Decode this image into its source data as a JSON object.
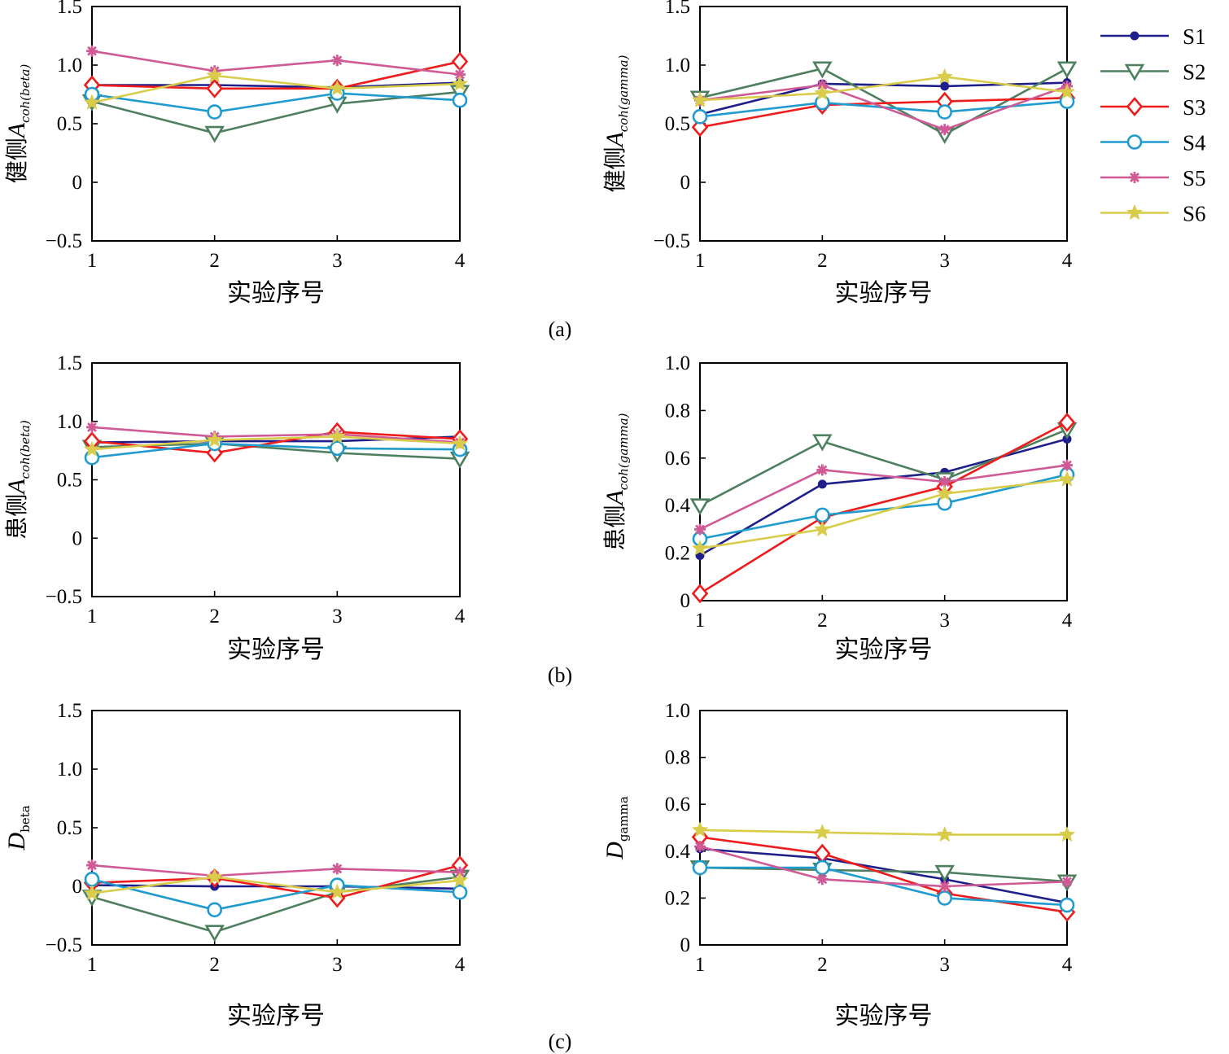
{
  "series_styles": [
    {
      "name": "S1",
      "color": "#1f1f8c",
      "marker": "dot"
    },
    {
      "name": "S2",
      "color": "#4e8060",
      "marker": "triangle-down"
    },
    {
      "name": "S3",
      "color": "#ee1c1c",
      "marker": "diamond"
    },
    {
      "name": "S4",
      "color": "#1f9bcf",
      "marker": "circle"
    },
    {
      "name": "S5",
      "color": "#d05a95",
      "marker": "asterisk"
    },
    {
      "name": "S6",
      "color": "#d8cc4a",
      "marker": "star"
    }
  ],
  "panel_labels": [
    "(a)",
    "(b)",
    "(c)"
  ],
  "chart_data": [
    {
      "type": "line",
      "panel": "(a)",
      "position": "left",
      "ylabel_pre": "健侧",
      "ylabel_main": "A",
      "ylabel_sub": "coh(beta)",
      "xlabel": "实验序号",
      "x": [
        1,
        2,
        3,
        4
      ],
      "ylim": [
        -0.5,
        1.5
      ],
      "yticks": [
        -0.5,
        0,
        0.5,
        1.0,
        1.5
      ],
      "ytick_labels": [
        "−0.5",
        "0",
        "0.5",
        "1.0",
        "1.5"
      ],
      "series": [
        {
          "name": "S1",
          "values": [
            0.83,
            0.83,
            0.81,
            0.85
          ]
        },
        {
          "name": "S2",
          "values": [
            0.69,
            0.42,
            0.67,
            0.77
          ]
        },
        {
          "name": "S3",
          "values": [
            0.83,
            0.8,
            0.8,
            1.03
          ]
        },
        {
          "name": "S4",
          "values": [
            0.75,
            0.6,
            0.76,
            0.7
          ]
        },
        {
          "name": "S5",
          "values": [
            1.12,
            0.95,
            1.04,
            0.92
          ]
        },
        {
          "name": "S6",
          "values": [
            0.68,
            0.91,
            0.8,
            0.84
          ]
        }
      ]
    },
    {
      "type": "line",
      "panel": "(a)",
      "position": "right",
      "ylabel_pre": "健侧",
      "ylabel_main": "A",
      "ylabel_sub": "coh(gamma)",
      "xlabel": "实验序号",
      "x": [
        1,
        2,
        3,
        4
      ],
      "ylim": [
        -0.5,
        1.5
      ],
      "yticks": [
        -0.5,
        0,
        0.5,
        1.0,
        1.5
      ],
      "ytick_labels": [
        "−0.5",
        "0",
        "0.5",
        "1.0",
        "1.5"
      ],
      "series": [
        {
          "name": "S1",
          "values": [
            0.58,
            0.84,
            0.82,
            0.85
          ]
        },
        {
          "name": "S2",
          "values": [
            0.72,
            0.97,
            0.41,
            0.97
          ]
        },
        {
          "name": "S3",
          "values": [
            0.47,
            0.66,
            0.69,
            0.72
          ]
        },
        {
          "name": "S4",
          "values": [
            0.56,
            0.68,
            0.6,
            0.69
          ]
        },
        {
          "name": "S5",
          "values": [
            0.7,
            0.83,
            0.45,
            0.82
          ]
        },
        {
          "name": "S6",
          "values": [
            0.7,
            0.76,
            0.9,
            0.77
          ]
        }
      ]
    },
    {
      "type": "line",
      "panel": "(b)",
      "position": "left",
      "ylabel_pre": "患侧",
      "ylabel_main": "A",
      "ylabel_sub": "coh(beta)",
      "xlabel": "实验序号",
      "x": [
        1,
        2,
        3,
        4
      ],
      "ylim": [
        -0.5,
        1.5
      ],
      "yticks": [
        -0.5,
        0,
        0.5,
        1.0,
        1.5
      ],
      "ytick_labels": [
        "−0.5",
        "0",
        "0.5",
        "1.0",
        "1.5"
      ],
      "series": [
        {
          "name": "S1",
          "values": [
            0.82,
            0.83,
            0.83,
            0.87
          ]
        },
        {
          "name": "S2",
          "values": [
            0.78,
            0.81,
            0.73,
            0.68
          ]
        },
        {
          "name": "S3",
          "values": [
            0.83,
            0.73,
            0.91,
            0.85
          ]
        },
        {
          "name": "S4",
          "values": [
            0.69,
            0.81,
            0.77,
            0.76
          ]
        },
        {
          "name": "S5",
          "values": [
            0.95,
            0.87,
            0.89,
            0.82
          ]
        },
        {
          "name": "S6",
          "values": [
            0.76,
            0.84,
            0.87,
            0.81
          ]
        }
      ]
    },
    {
      "type": "line",
      "panel": "(b)",
      "position": "right",
      "ylabel_pre": "患侧",
      "ylabel_main": "A",
      "ylabel_sub": "coh(gamma)",
      "xlabel": "实验序号",
      "x": [
        1,
        2,
        3,
        4
      ],
      "ylim": [
        0,
        1.0
      ],
      "yticks": [
        0,
        0.2,
        0.4,
        0.6,
        0.8,
        1.0
      ],
      "ytick_labels": [
        "0",
        "0.2",
        "0.4",
        "0.6",
        "0.8",
        "1.0"
      ],
      "series": [
        {
          "name": "S1",
          "values": [
            0.19,
            0.49,
            0.54,
            0.68
          ]
        },
        {
          "name": "S2",
          "values": [
            0.4,
            0.67,
            0.51,
            0.72
          ]
        },
        {
          "name": "S3",
          "values": [
            0.03,
            0.35,
            0.48,
            0.75
          ]
        },
        {
          "name": "S4",
          "values": [
            0.26,
            0.36,
            0.41,
            0.53
          ]
        },
        {
          "name": "S5",
          "values": [
            0.3,
            0.55,
            0.5,
            0.57
          ]
        },
        {
          "name": "S6",
          "values": [
            0.22,
            0.3,
            0.45,
            0.51
          ]
        }
      ]
    },
    {
      "type": "line",
      "panel": "(c)",
      "position": "left",
      "ylabel_pre": "",
      "ylabel_main": "D",
      "ylabel_sub": "beta",
      "xlabel": "实验序号",
      "x": [
        1,
        2,
        3,
        4
      ],
      "ylim": [
        -0.5,
        1.5
      ],
      "yticks": [
        -0.5,
        0,
        0.5,
        1.0,
        1.5
      ],
      "ytick_labels": [
        "−0.5",
        "0",
        "0.5",
        "1.0",
        "1.5"
      ],
      "series": [
        {
          "name": "S1",
          "values": [
            0.01,
            0.0,
            0.0,
            -0.02
          ]
        },
        {
          "name": "S2",
          "values": [
            -0.09,
            -0.39,
            -0.05,
            0.08
          ]
        },
        {
          "name": "S3",
          "values": [
            0.03,
            0.07,
            -0.1,
            0.18
          ]
        },
        {
          "name": "S4",
          "values": [
            0.06,
            -0.2,
            0.01,
            -0.05
          ]
        },
        {
          "name": "S5",
          "values": [
            0.18,
            0.09,
            0.15,
            0.12
          ]
        },
        {
          "name": "S6",
          "values": [
            -0.06,
            0.08,
            -0.05,
            0.05
          ]
        }
      ]
    },
    {
      "type": "line",
      "panel": "(c)",
      "position": "right",
      "ylabel_pre": "",
      "ylabel_main": "D",
      "ylabel_sub": "gamma",
      "xlabel": "实验序号",
      "x": [
        1,
        2,
        3,
        4
      ],
      "ylim": [
        0,
        1.0
      ],
      "yticks": [
        0,
        0.2,
        0.4,
        0.6,
        0.8,
        1.0
      ],
      "ytick_labels": [
        "0",
        "0.2",
        "0.4",
        "0.6",
        "0.8",
        "1.0"
      ],
      "series": [
        {
          "name": "S1",
          "values": [
            0.41,
            0.37,
            0.28,
            0.18
          ]
        },
        {
          "name": "S2",
          "values": [
            0.33,
            0.32,
            0.31,
            0.27
          ]
        },
        {
          "name": "S3",
          "values": [
            0.46,
            0.39,
            0.22,
            0.14
          ]
        },
        {
          "name": "S4",
          "values": [
            0.33,
            0.33,
            0.2,
            0.17
          ]
        },
        {
          "name": "S5",
          "values": [
            0.42,
            0.28,
            0.25,
            0.27
          ]
        },
        {
          "name": "S6",
          "values": [
            0.49,
            0.48,
            0.47,
            0.47
          ]
        }
      ]
    }
  ]
}
